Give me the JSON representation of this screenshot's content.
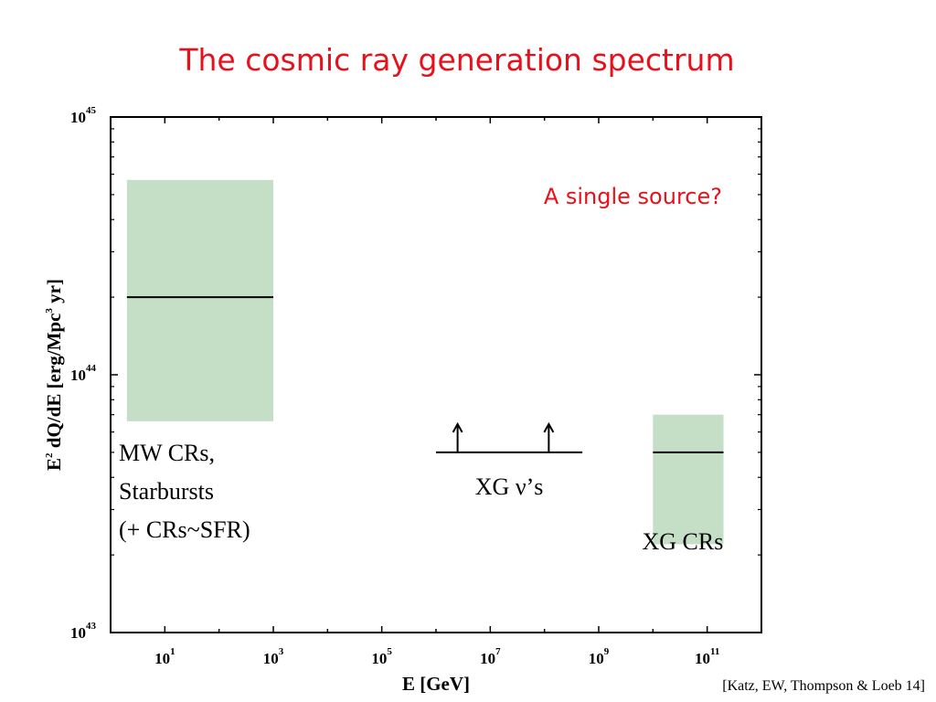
{
  "slide": {
    "title": "The cosmic ray generation spectrum",
    "citation": "[Katz, EW, Thompson & Loeb 14]"
  },
  "colors": {
    "title": "#e8101a",
    "band_fill": "#c5dfc6",
    "axis": "#000000"
  },
  "chart_data": {
    "type": "band-and-line",
    "scale": {
      "x": "log",
      "y": "log"
    },
    "xlabel": "E  [GeV]",
    "ylabel_main": "E",
    "ylabel_exp1": "2",
    "ylabel_mid": " dQ/dE  [erg/Mpc",
    "ylabel_exp2": "3",
    "ylabel_end": " yr]",
    "xlim": [
      1,
      1000000000000.0
    ],
    "ylim": [
      1e+43,
      1e+45
    ],
    "x_ticks": [
      {
        "value": 10,
        "base": "10",
        "exp": "1"
      },
      {
        "value": 1000,
        "base": "10",
        "exp": "3"
      },
      {
        "value": 100000,
        "base": "10",
        "exp": "5"
      },
      {
        "value": 10000000,
        "base": "10",
        "exp": "7"
      },
      {
        "value": 1000000000,
        "base": "10",
        "exp": "9"
      },
      {
        "value": 100000000000,
        "base": "10",
        "exp": "11"
      }
    ],
    "y_ticks": [
      {
        "value": 1e+43,
        "base": "10",
        "exp": "43"
      },
      {
        "value": 1e+44,
        "base": "10",
        "exp": "44"
      },
      {
        "value": 1e+45,
        "base": "10",
        "exp": "45"
      }
    ],
    "series": [
      {
        "kind": "band",
        "x_range": [
          2,
          1000
        ],
        "y_range": [
          6.6e+43,
          5.7e+44
        ],
        "central": 2e+44,
        "label_lines": [
          "MW CRs,",
          "Starbursts",
          "(+ CRs~SFR)"
        ]
      },
      {
        "kind": "lower-limit",
        "x_range": [
          1000000,
          500000000
        ],
        "value": 5e+43,
        "arrow_x": [
          2500000,
          120000000
        ],
        "label_prefix": "XG ",
        "label_symbol": "ν",
        "label_suffix": "’s"
      },
      {
        "kind": "band",
        "x_range": [
          10000000000,
          200000000000
        ],
        "y_range": [
          2.2e+43,
          7e+43
        ],
        "central": 5e+43,
        "label_lines": [
          "XG CRs"
        ]
      }
    ],
    "annotations": [
      "A single source?"
    ]
  }
}
